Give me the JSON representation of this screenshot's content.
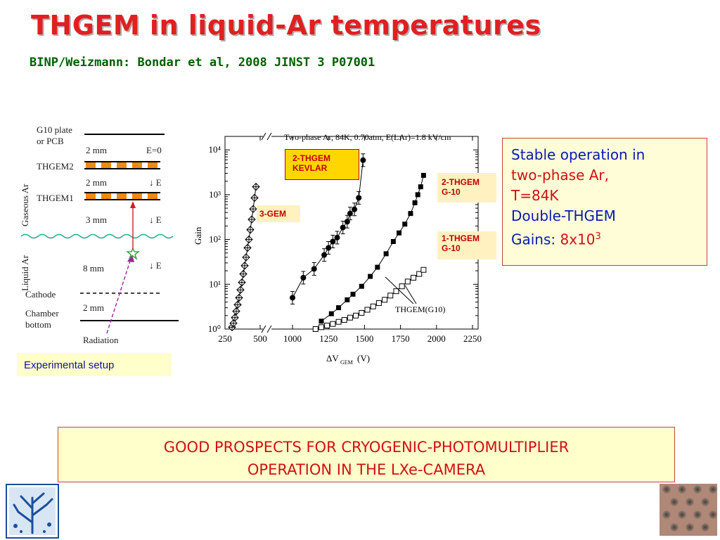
{
  "slide": {
    "title": "THGEM in liquid-Ar temperatures",
    "subtitle": "BINP/Weizmann: Bondar et al, 2008 JINST 3 P07001"
  },
  "setup": {
    "labels": {
      "g10_plate": "G10 plate",
      "or_pcb": "or PCB",
      "thgem2": "THGEM2",
      "thgem1": "THGEM1",
      "gaseous_ar": "Gaseous Ar",
      "liquid_ar": "Liquid Ar",
      "cathode": "Cathode",
      "chamber": "Chamber",
      "bottom": "bottom",
      "radiation": "Radiation"
    },
    "gaps": [
      "2 mm",
      "2 mm",
      "3 mm",
      "8 mm",
      "2 mm"
    ],
    "fields": [
      "E=0",
      "↓ E",
      "↓ E",
      "↓ E"
    ],
    "caption": "Experimental setup"
  },
  "chart_data": {
    "type": "scatter",
    "title": "Two-phase Ar, 84K, 0.70atm, E(LAr)=1.8 kV/cm",
    "xlabel": "ΔV",
    "xlabel_sub": "GEM",
    "xlabel_unit": "(V)",
    "ylabel": "Gain",
    "x_ticks": [
      250,
      500,
      1000,
      1250,
      1500,
      1750,
      2000,
      2250
    ],
    "y_ticks": [
      "10⁰",
      "10¹",
      "10²",
      "10³",
      "10⁴"
    ],
    "y_scale": "log",
    "ylim": [
      1,
      20000
    ],
    "x_axis_break": "between 500 and 1000",
    "series": [
      {
        "name": "3-GEM",
        "marker": "diamond-cross",
        "x": [
          300,
          310,
          320,
          330,
          340,
          350,
          360,
          370,
          380,
          390,
          400,
          410,
          420,
          430,
          440,
          450,
          460,
          470
        ],
        "y": [
          1.1,
          1.35,
          1.8,
          2.5,
          3.5,
          5,
          7.5,
          11,
          17,
          26,
          40,
          65,
          100,
          165,
          280,
          480,
          850,
          1500
        ]
      },
      {
        "name": "2-THGEM KEVLAR",
        "marker": "filled-circle",
        "x": [
          1000,
          1075,
          1150,
          1220,
          1250,
          1280,
          1310,
          1350,
          1380,
          1400,
          1430,
          1460,
          1490
        ],
        "y": [
          5,
          14,
          22,
          45,
          65,
          90,
          110,
          185,
          250,
          380,
          470,
          850,
          5900
        ]
      },
      {
        "name": "2-THGEM G-10",
        "marker": "filled-square",
        "x": [
          1200,
          1270,
          1320,
          1380,
          1420,
          1480,
          1540,
          1590,
          1650,
          1700,
          1740,
          1780,
          1820,
          1850,
          1870,
          1890,
          1910
        ],
        "y": [
          1.5,
          2.2,
          3.0,
          4.5,
          6,
          9,
          15,
          24,
          48,
          90,
          140,
          220,
          380,
          660,
          1000,
          1500,
          2700
        ]
      },
      {
        "name": "1-THGEM G-10",
        "marker": "open-square",
        "x": [
          1160,
          1200,
          1240,
          1280,
          1320,
          1360,
          1400,
          1440,
          1480,
          1520,
          1560,
          1600,
          1640,
          1680,
          1720,
          1760,
          1800,
          1840,
          1880,
          1910
        ],
        "y": [
          1.0,
          1.1,
          1.2,
          1.3,
          1.45,
          1.6,
          1.8,
          2.0,
          2.3,
          2.7,
          3.2,
          3.8,
          4.5,
          5.6,
          7,
          9,
          11.5,
          14,
          17,
          21
        ]
      }
    ],
    "annotations": {
      "kevlar": [
        "2-THGEM",
        "KEVLAR"
      ],
      "gem3": "3-GEM",
      "g10_2": [
        "2-THGEM",
        "G-10"
      ],
      "g10_1": [
        "1-THGEM",
        "G-10"
      ],
      "thgem_g10": "THGEM(G10)"
    }
  },
  "info": {
    "line1": "Stable operation in",
    "line2": "two-phase Ar,",
    "line3": "T=84K",
    "line4": "Double-THGEM",
    "line5_prefix": "Gains: ",
    "line5_value": "8x10",
    "line5_exp": "3"
  },
  "bottom": {
    "line1": "GOOD PROSPECTS FOR CRYOGENIC-PHOTOMULTIPLIER",
    "line2": "OPERATION IN THE LXe-CAMERA"
  },
  "colors": {
    "title": "#e02020",
    "subtitle": "#006000",
    "info_text": "#0a1ab0",
    "accent_red": "#d01010",
    "box_fill": "#ffffcc",
    "orange_block": "#ee8a10",
    "green_wave": "#20b090"
  }
}
